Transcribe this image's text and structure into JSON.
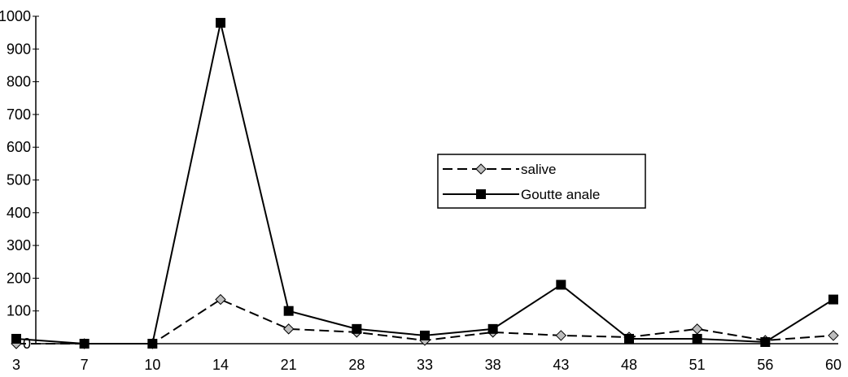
{
  "chart_data": {
    "type": "line",
    "categories": [
      "3",
      "7",
      "10",
      "14",
      "21",
      "28",
      "33",
      "38",
      "43",
      "48",
      "51",
      "56",
      "60"
    ],
    "series": [
      {
        "name": "salive",
        "style": "dashed",
        "marker": "diamond",
        "color": "#000000",
        "values": [
          0,
          0,
          0,
          135,
          45,
          35,
          10,
          35,
          25,
          20,
          45,
          10,
          25
        ]
      },
      {
        "name": "Goutte anale",
        "style": "solid",
        "marker": "square",
        "color": "#000000",
        "values": [
          15,
          0,
          0,
          980,
          100,
          45,
          25,
          45,
          180,
          15,
          15,
          5,
          135
        ]
      }
    ],
    "yticks": [
      0,
      100,
      200,
      300,
      400,
      500,
      600,
      700,
      800,
      900,
      1000
    ],
    "ylim": [
      0,
      1000
    ],
    "grid": false,
    "legend_position": "center-right"
  }
}
